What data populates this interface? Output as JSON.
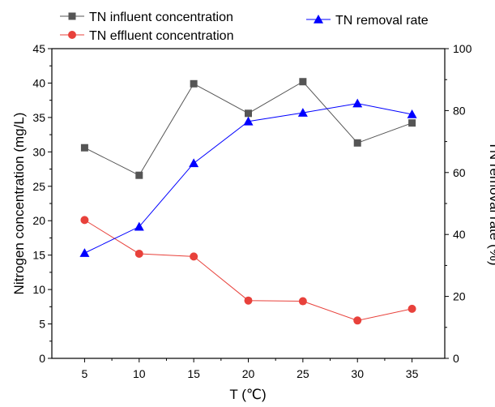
{
  "chart_data": {
    "type": "line",
    "x": [
      5,
      10,
      15,
      20,
      25,
      30,
      35
    ],
    "xlabel": "T (℃)",
    "ylabel_left": "Nitrogen concentration (mg/L)",
    "ylabel_right": "TN removal rate (%)",
    "xlim": [
      2,
      38
    ],
    "ylim_left": [
      0,
      45
    ],
    "ylim_right": [
      0,
      100
    ],
    "xticks": [
      5,
      10,
      15,
      20,
      25,
      30,
      35
    ],
    "yticks_left": [
      0,
      5,
      10,
      15,
      20,
      25,
      30,
      35,
      40,
      45
    ],
    "yticks_right": [
      0,
      20,
      40,
      60,
      80,
      100
    ],
    "grid": false,
    "legend": "top",
    "series": [
      {
        "name": "TN influent concentration",
        "axis": "left",
        "marker": "square",
        "color": "#555555",
        "values": [
          30.6,
          26.6,
          39.9,
          35.6,
          40.2,
          31.3,
          34.2
        ]
      },
      {
        "name": "TN effluent concentration",
        "axis": "left",
        "marker": "circle",
        "color": "#e8413b",
        "values": [
          20.1,
          15.2,
          14.8,
          8.4,
          8.3,
          5.5,
          7.2
        ]
      },
      {
        "name": "TN removal rate",
        "axis": "right",
        "marker": "triangle",
        "color": "#0000ff",
        "values": [
          34.0,
          42.5,
          63.0,
          76.5,
          79.3,
          82.3,
          78.8
        ]
      }
    ]
  }
}
